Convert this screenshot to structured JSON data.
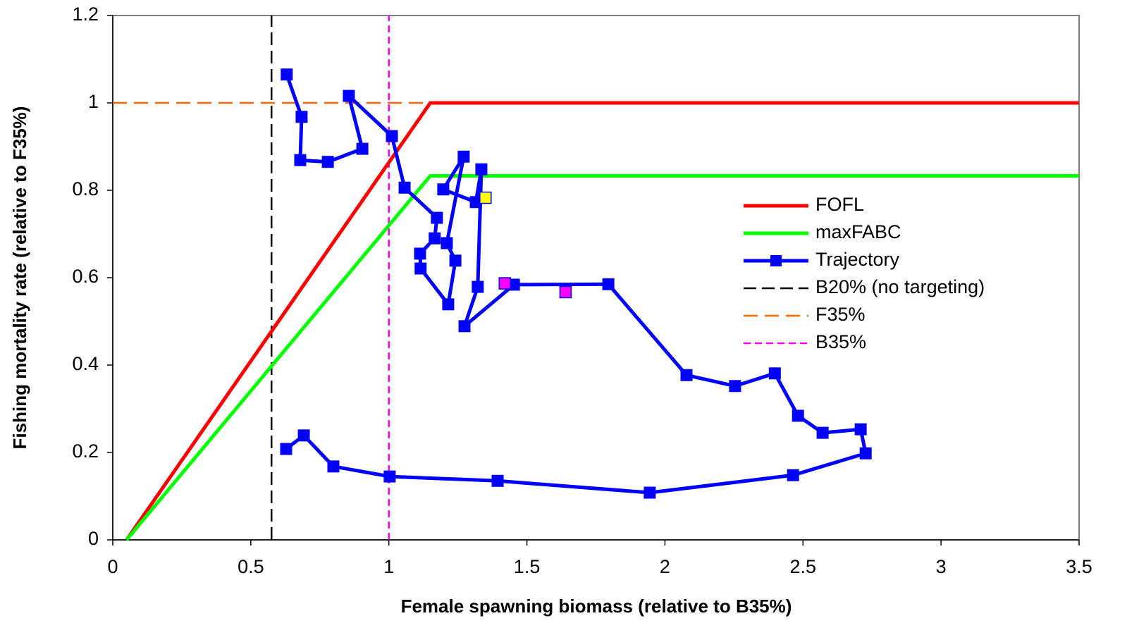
{
  "chart_data": {
    "type": "line",
    "x_label": "Female spawning biomass (relative to B35%)",
    "y_label": "Fishing mortality rate (relative to F35%)",
    "xlim": [
      0,
      3.5
    ],
    "xticks": [
      0,
      0.5,
      1,
      1.5,
      2,
      2.5,
      3,
      3.5
    ],
    "ylim": [
      0,
      1.2
    ],
    "yticks": [
      0,
      0.2,
      0.4,
      0.6,
      0.8,
      1,
      1.2
    ],
    "legend": "right",
    "series": [
      {
        "name": "FOFL",
        "color": "#ff0000",
        "x": [
          0.05,
          1.15,
          3.5
        ],
        "y": [
          0,
          1,
          1
        ]
      },
      {
        "name": "maxFABC",
        "color": "#00ff00",
        "x": [
          0.05,
          1.15,
          3.5
        ],
        "y": [
          0,
          0.833,
          0.833
        ]
      },
      {
        "name": "Trajectory",
        "color": "#0000ff",
        "marker": "square",
        "x": [
          0.63,
          0.684,
          0.679,
          0.779,
          0.904,
          0.855,
          1.011,
          1.057,
          1.174,
          1.166,
          1.113,
          1.115,
          1.215,
          1.241,
          1.21,
          1.271,
          1.197,
          1.315,
          1.335,
          1.322,
          1.274,
          1.453,
          1.795,
          2.078,
          2.254,
          2.398,
          2.482,
          2.571,
          2.709,
          2.727,
          2.464,
          1.945,
          1.394,
          1.003,
          0.799,
          0.692,
          0.628
        ],
        "y": [
          1.065,
          0.968,
          0.869,
          0.865,
          0.895,
          1.016,
          0.924,
          0.806,
          0.737,
          0.69,
          0.655,
          0.621,
          0.539,
          0.639,
          0.679,
          0.877,
          0.802,
          0.773,
          0.848,
          0.579,
          0.489,
          0.584,
          0.585,
          0.377,
          0.352,
          0.381,
          0.284,
          0.245,
          0.253,
          0.198,
          0.148,
          0.108,
          0.135,
          0.145,
          0.168,
          0.239,
          0.208
        ]
      },
      {
        "name": "B20% (no targeting)",
        "color": "#000000",
        "dash": true,
        "x": [
          0.575,
          0.575
        ],
        "y": [
          0,
          1.2
        ]
      },
      {
        "name": "F35%",
        "color": "#ff6600",
        "dash": true,
        "x": [
          0,
          1.15
        ],
        "y": [
          1,
          1
        ]
      },
      {
        "name": "B35%",
        "color": "#ff00ff",
        "dash": true,
        "x": [
          1,
          1
        ],
        "y": [
          0,
          1.2
        ]
      }
    ],
    "points": [
      {
        "color": "#ff00ff",
        "x": 1.42,
        "y": 0.587
      },
      {
        "color": "#ff00ff",
        "x": 1.64,
        "y": 0.567
      },
      {
        "color": "#ffff00",
        "x": 1.35,
        "y": 0.783
      }
    ]
  }
}
